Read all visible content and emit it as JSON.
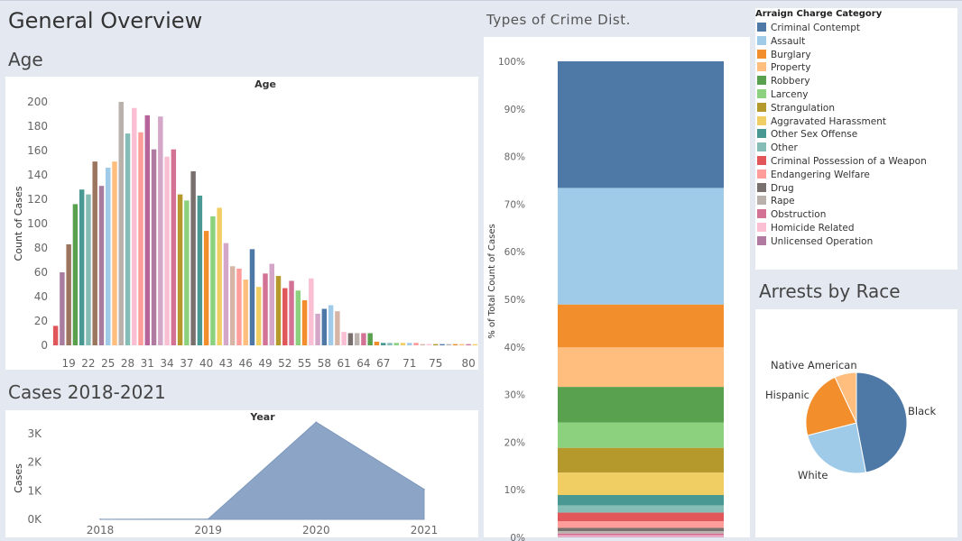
{
  "dashboard_title": "General Overview",
  "sections": {
    "age": "Age",
    "cases": "Cases 2018-2021",
    "crime": "Types of Crime Dist.",
    "race": "Arrests by Race"
  },
  "chart_data": [
    {
      "id": "age",
      "type": "bar",
      "title": "Age",
      "xlabel": "",
      "ylabel": "Count of Cases",
      "ylim": [
        0,
        200
      ],
      "yticks": [
        0,
        20,
        40,
        60,
        80,
        100,
        120,
        140,
        160,
        180,
        200
      ],
      "xtick_labels": [
        "19",
        "22",
        "25",
        "28",
        "31",
        "34",
        "37",
        "40",
        "43",
        "46",
        "49",
        "52",
        "55",
        "58",
        "61",
        "64",
        "67",
        "71",
        "75",
        "80"
      ],
      "categories": [
        "17",
        "18",
        "19",
        "20",
        "21",
        "22",
        "23",
        "24",
        "25",
        "26",
        "27",
        "28",
        "29",
        "30",
        "31",
        "32",
        "33",
        "34",
        "35",
        "36",
        "37",
        "38",
        "39",
        "40",
        "41",
        "42",
        "43",
        "44",
        "45",
        "46",
        "47",
        "48",
        "49",
        "50",
        "51",
        "52",
        "53",
        "54",
        "55",
        "56",
        "57",
        "58",
        "59",
        "60",
        "61",
        "62",
        "63",
        "64",
        "65",
        "66",
        "67",
        "68",
        "69",
        "70",
        "71",
        "72",
        "73",
        "74",
        "75",
        "76",
        "77",
        "78",
        "79",
        "80",
        "81"
      ],
      "values": [
        16,
        60,
        83,
        116,
        128,
        124,
        151,
        131,
        146,
        151,
        200,
        174,
        195,
        175,
        189,
        161,
        188,
        155,
        161,
        124,
        119,
        143,
        123,
        94,
        106,
        113,
        84,
        65,
        63,
        54,
        79,
        48,
        59,
        67,
        57,
        47,
        53,
        45,
        37,
        55,
        26,
        30,
        33,
        28,
        11,
        10,
        10,
        10,
        10,
        3,
        2,
        2,
        2,
        2,
        2,
        2,
        1,
        1,
        1,
        1,
        1,
        1,
        1,
        1,
        1
      ],
      "colors": [
        "#e15759",
        "#a87c9f",
        "#9c755f",
        "#59a14f",
        "#499894",
        "#86bcb6",
        "#9c755f",
        "#a87c9f",
        "#a0cbe8",
        "#ffbe7d",
        "#bab0ac",
        "#86bcb6",
        "#fabfd2",
        "#ff9d9a",
        "#b6649a",
        "#b07aa1",
        "#d4a6c8",
        "#fabfd2",
        "#d37295",
        "#b6992d",
        "#8cd17d",
        "#79706e",
        "#499894",
        "#f28e2b",
        "#8cd17d",
        "#f1ce63",
        "#d4a6c8",
        "#d7b5a6",
        "#ff9d9a",
        "#ffbe7d",
        "#4e79a7",
        "#f1ce63",
        "#d37295",
        "#d4a6c8",
        "#b6992d",
        "#e15759",
        "#d37295",
        "#8cd17d",
        "#f28e2b",
        "#fabfd2",
        "#d4a6c8",
        "#4e79a7",
        "#a0cbe8",
        "#d7b5a6",
        "#fabfd2",
        "#79706e",
        "#bab0ac",
        "#d37295",
        "#59a14f",
        "#f28e2b",
        "#499894",
        "#86bcb6",
        "#8cd17d",
        "#f1ce63",
        "#a0cbe8",
        "#ff9d9a",
        "#d7b5a6",
        "#fabfd2",
        "#b6992d",
        "#4e79a7",
        "#bab0ac",
        "#f28e2b",
        "#ffbe7d",
        "#d37295",
        "#f1ce63"
      ]
    },
    {
      "id": "cases",
      "type": "area",
      "title": "Year",
      "xlabel": "",
      "ylabel": "Cases",
      "ylim": [
        0,
        3500
      ],
      "yticks": [
        0,
        1000,
        2000,
        3000
      ],
      "ytick_labels": [
        "0K",
        "1K",
        "2K",
        "3K"
      ],
      "x": [
        "2018",
        "2019",
        "2020",
        "2021"
      ],
      "values": [
        5,
        10,
        3400,
        1050
      ],
      "color": "#8ca5c6"
    },
    {
      "id": "crime",
      "type": "bar",
      "stacked": true,
      "ylabel": "% of Total Count of Cases",
      "ylim": [
        0,
        100
      ],
      "yticks": [
        0,
        10,
        20,
        30,
        40,
        50,
        60,
        70,
        80,
        90,
        100
      ],
      "ytick_labels": [
        "0%",
        "10%",
        "20%",
        "30%",
        "40%",
        "50%",
        "60%",
        "70%",
        "80%",
        "90%",
        "100%"
      ],
      "legend_title": "Arraign Charge Category",
      "series": [
        {
          "name": "Criminal Contempt",
          "value": 26.6,
          "color": "#4e79a7"
        },
        {
          "name": "Assault",
          "value": 24.5,
          "color": "#a0cbe8"
        },
        {
          "name": "Burglary",
          "value": 9.0,
          "color": "#f28e2b"
        },
        {
          "name": "Property",
          "value": 8.3,
          "color": "#ffbe7d"
        },
        {
          "name": "Robbery",
          "value": 7.5,
          "color": "#59a14f"
        },
        {
          "name": "Larceny",
          "value": 5.3,
          "color": "#8cd17d"
        },
        {
          "name": "Strangulation",
          "value": 5.2,
          "color": "#b6992d"
        },
        {
          "name": "Aggravated Harassment",
          "value": 4.7,
          "color": "#f1ce63"
        },
        {
          "name": "Other Sex Offense",
          "value": 2.2,
          "color": "#499894"
        },
        {
          "name": "Other",
          "value": 1.5,
          "color": "#86bcb6"
        },
        {
          "name": "Criminal Possession of a Weapon",
          "value": 1.8,
          "color": "#e15759"
        },
        {
          "name": "Endangering Welfare",
          "value": 1.4,
          "color": "#ff9d9a"
        },
        {
          "name": "Drug",
          "value": 0.7,
          "color": "#79706e"
        },
        {
          "name": "Rape",
          "value": 0.5,
          "color": "#bab0ac"
        },
        {
          "name": "Obstruction",
          "value": 0.4,
          "color": "#d37295"
        },
        {
          "name": "Homicide Related",
          "value": 0.3,
          "color": "#fabfd2"
        },
        {
          "name": "Unlicensed Operation",
          "value": 0.1,
          "color": "#b07aa1"
        }
      ]
    },
    {
      "id": "race",
      "type": "pie",
      "slices": [
        {
          "label": "Black",
          "value": 47,
          "color": "#4e79a7"
        },
        {
          "label": "White",
          "value": 24,
          "color": "#a0cbe8"
        },
        {
          "label": "Hispanic",
          "value": 22,
          "color": "#f28e2b"
        },
        {
          "label": "Native American",
          "value": 7,
          "color": "#ffbe7d"
        }
      ]
    }
  ]
}
